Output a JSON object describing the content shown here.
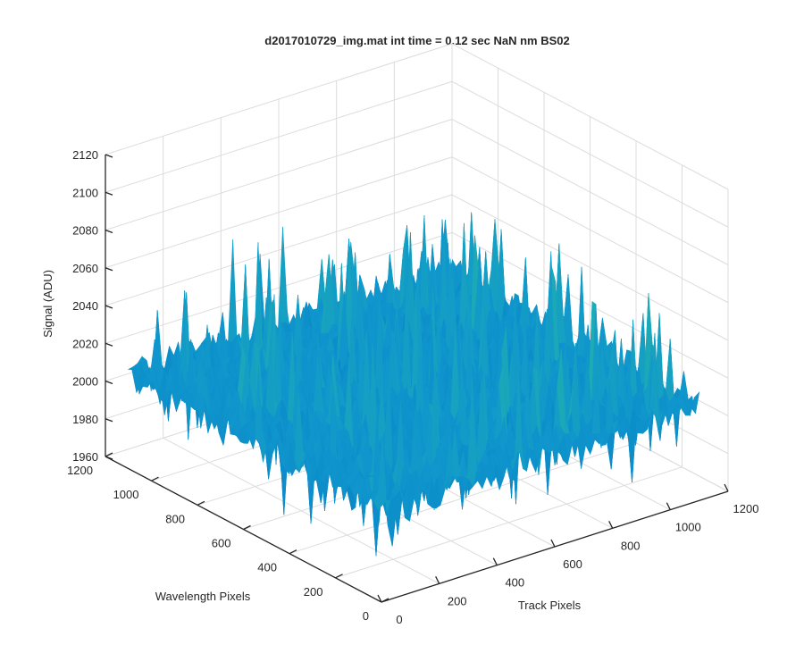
{
  "chart_data": {
    "type": "surface",
    "title": "d2017010729_img.mat int time = 0.12 sec  NaN nm BS02",
    "xlabel": "Track Pixels",
    "ylabel": "Wavelength Pixels",
    "zlabel": "Signal (ADU)",
    "xlim": [
      0,
      1200
    ],
    "ylim": [
      0,
      1200
    ],
    "zlim": [
      1960,
      2120
    ],
    "x_ticks": [
      "0",
      "200",
      "400",
      "600",
      "800",
      "1000",
      "1200"
    ],
    "y_ticks": [
      "0",
      "200",
      "400",
      "600",
      "800",
      "1000",
      "1200"
    ],
    "z_ticks": [
      "1960",
      "1980",
      "2000",
      "2020",
      "2040",
      "2060",
      "2080",
      "2100",
      "2120"
    ],
    "data_extent": {
      "x": [
        0,
        1100
      ],
      "y": [
        0,
        1100
      ]
    },
    "mean_signal": 2010,
    "noise_range": [
      1965,
      2105
    ],
    "colormap": "parula",
    "colors": {
      "low": "#0072bd",
      "mid": "#21b3ad",
      "high": "#d8d84a",
      "grid": "#dcdcdc",
      "axis": "#262626"
    },
    "grid": true,
    "view": "3d-default"
  }
}
